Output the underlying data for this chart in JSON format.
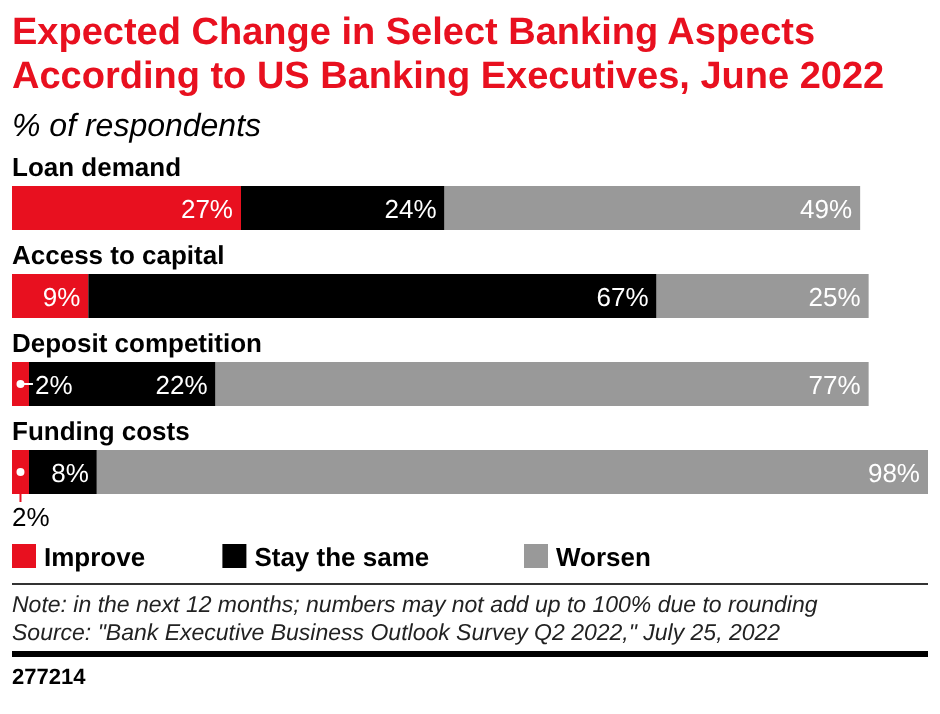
{
  "chart_data": {
    "type": "bar",
    "orientation": "horizontal",
    "stacked": true,
    "title": "Expected Change in Select Banking Aspects According to US Banking Executives, June 2022",
    "subtitle": "% of respondents",
    "categories": [
      "Loan demand",
      "Access to capital",
      "Deposit competition",
      "Funding costs"
    ],
    "xlim": [
      0,
      108
    ],
    "series": [
      {
        "name": "Improve",
        "color": "#e8101f",
        "values": [
          27,
          9,
          2,
          2
        ],
        "value_labels": [
          "27%",
          "9%",
          "2%",
          "2%"
        ]
      },
      {
        "name": "Stay the same",
        "color": "#000000",
        "values": [
          24,
          67,
          22,
          8
        ],
        "value_labels": [
          "24%",
          "67%",
          "22%",
          "8%"
        ]
      },
      {
        "name": "Worsen",
        "color": "#999999",
        "values": [
          49,
          25,
          77,
          98
        ],
        "value_labels": [
          "49%",
          "25%",
          "77%",
          "98%"
        ]
      }
    ],
    "legend": "bottom",
    "annotations": [
      "Note: in the next 12 months; numbers may not add up to 100% due to rounding",
      "Source: \"Bank Executive Business Outlook Survey Q2 2022,\" July 25, 2022",
      "277214"
    ]
  }
}
